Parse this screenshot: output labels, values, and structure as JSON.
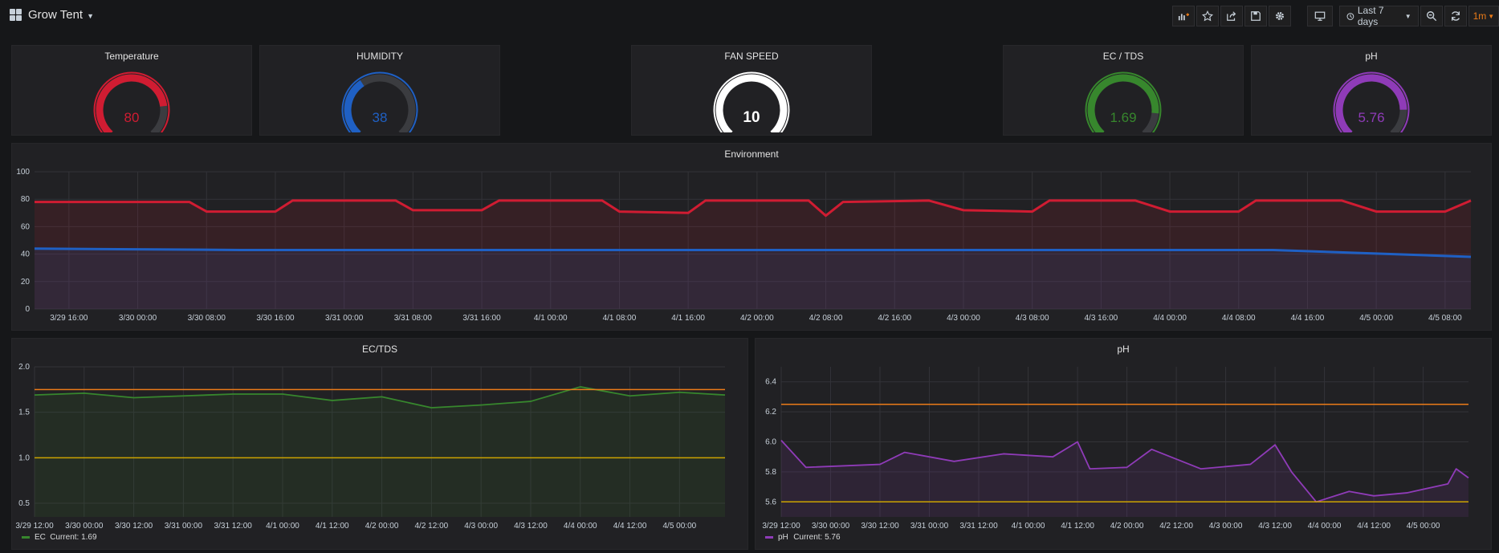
{
  "header": {
    "title": "Grow Tent",
    "time_range": "Last 7 days",
    "refresh_interval": "1m"
  },
  "gauges": [
    {
      "title": "Temperature",
      "value": 80,
      "display": "80",
      "min": 0,
      "max": 100,
      "color": "#d01c32"
    },
    {
      "title": "HUMIDITY",
      "value": 38,
      "display": "38",
      "min": 0,
      "max": 100,
      "color": "#1f60c4"
    },
    {
      "title": "FAN SPEED",
      "value": 10,
      "display": "10",
      "min": 0,
      "max": 10,
      "color": "#ffffff"
    },
    {
      "title": "EC / TDS",
      "value": 1.69,
      "display": "1.69",
      "min": 0,
      "max": 2,
      "color": "#37872d"
    },
    {
      "title": "pH",
      "value": 5.76,
      "display": "5.76",
      "min": 0,
      "max": 7,
      "color": "#8f3bb8"
    }
  ],
  "colors": {
    "temperature": "#d01c32",
    "humidity": "#1f60c4",
    "ec": "#37872d",
    "ph": "#8f3bb8",
    "threshold_upper": "#eb7b18",
    "threshold_lower": "#cca300"
  },
  "chart_data": [
    {
      "title": "Environment",
      "type": "line",
      "ylim": [
        0,
        100
      ],
      "yticks": [
        0,
        20,
        40,
        60,
        80,
        100
      ],
      "x_range": [
        "3/29 12:00",
        "4/5 11:00"
      ],
      "xtick_labels": [
        "3/29 16:00",
        "3/30 00:00",
        "3/30 08:00",
        "3/30 16:00",
        "3/31 00:00",
        "3/31 08:00",
        "3/31 16:00",
        "4/1 00:00",
        "4/1 08:00",
        "4/1 16:00",
        "4/2 00:00",
        "4/2 08:00",
        "4/2 16:00",
        "4/3 00:00",
        "4/3 08:00",
        "4/3 16:00",
        "4/4 00:00",
        "4/4 08:00",
        "4/4 16:00",
        "4/5 00:00",
        "4/5 08:00"
      ],
      "series": [
        {
          "points": [
            [
              "3/29 12:00",
              78
            ],
            [
              "3/30 06:00",
              78
            ],
            [
              "3/30 08:00",
              71
            ],
            [
              "3/30 16:00",
              71
            ],
            [
              "3/30 18:00",
              79
            ],
            [
              "3/31 06:00",
              79
            ],
            [
              "3/31 08:00",
              72
            ],
            [
              "3/31 16:00",
              72
            ],
            [
              "3/31 18:00",
              79
            ],
            [
              "4/1 06:00",
              79
            ],
            [
              "4/1 08:00",
              71
            ],
            [
              "4/1 16:00",
              70
            ],
            [
              "4/1 18:00",
              79
            ],
            [
              "4/2 06:00",
              79
            ],
            [
              "4/2 08:00",
              68
            ],
            [
              "4/2 10:00",
              78
            ],
            [
              "4/2 20:00",
              79
            ],
            [
              "4/3 00:00",
              72
            ],
            [
              "4/3 08:00",
              71
            ],
            [
              "4/3 10:00",
              79
            ],
            [
              "4/3 20:00",
              79
            ],
            [
              "4/4 00:00",
              71
            ],
            [
              "4/4 08:00",
              71
            ],
            [
              "4/4 10:00",
              79
            ],
            [
              "4/4 20:00",
              79
            ],
            [
              "4/5 00:00",
              71
            ],
            [
              "4/5 08:00",
              71
            ],
            [
              "4/5 11:00",
              79
            ]
          ]
        },
        {
          "points": [
            [
              "3/29 12:00",
              44
            ],
            [
              "3/30 12:00",
              43
            ],
            [
              "3/31 12:00",
              43
            ],
            [
              "4/1 12:00",
              43
            ],
            [
              "4/2 12:00",
              43
            ],
            [
              "4/3 12:00",
              43
            ],
            [
              "4/4 12:00",
              43
            ],
            [
              "4/5 11:00",
              38
            ]
          ]
        }
      ]
    },
    {
      "title": "EC/TDS",
      "type": "line",
      "ylim": [
        0.35,
        2.0
      ],
      "yticks": [
        0.5,
        1.0,
        1.5,
        2.0
      ],
      "thresholds": [
        1.75,
        1.0
      ],
      "x_range": [
        "3/29 12:00",
        "4/5 11:00"
      ],
      "xtick_labels": [
        "3/29 12:00",
        "3/30 00:00",
        "3/30 12:00",
        "3/31 00:00",
        "3/31 12:00",
        "4/1 00:00",
        "4/1 12:00",
        "4/2 00:00",
        "4/2 12:00",
        "4/3 00:00",
        "4/3 12:00",
        "4/4 00:00",
        "4/4 12:00",
        "4/5 00:00"
      ],
      "legend": "EC",
      "legend_current": "Current: 1.69",
      "series": [
        {
          "name": "EC",
          "points": [
            [
              "3/29 12:00",
              1.69
            ],
            [
              "3/30 00:00",
              1.71
            ],
            [
              "3/30 12:00",
              1.66
            ],
            [
              "3/31 00:00",
              1.68
            ],
            [
              "3/31 12:00",
              1.7
            ],
            [
              "4/1 00:00",
              1.7
            ],
            [
              "4/1 12:00",
              1.63
            ],
            [
              "4/2 00:00",
              1.67
            ],
            [
              "4/2 12:00",
              1.55
            ],
            [
              "4/3 00:00",
              1.58
            ],
            [
              "4/3 12:00",
              1.62
            ],
            [
              "4/4 00:00",
              1.78
            ],
            [
              "4/4 12:00",
              1.68
            ],
            [
              "4/5 00:00",
              1.72
            ],
            [
              "4/5 11:00",
              1.69
            ]
          ]
        }
      ]
    },
    {
      "title": "pH",
      "type": "line",
      "ylim": [
        5.5,
        6.5
      ],
      "yticks": [
        5.6,
        5.8,
        6.0,
        6.2,
        6.4
      ],
      "thresholds": [
        6.25,
        5.6
      ],
      "x_range": [
        "3/29 12:00",
        "4/5 11:00"
      ],
      "xtick_labels": [
        "3/29 12:00",
        "3/30 00:00",
        "3/30 12:00",
        "3/31 00:00",
        "3/31 12:00",
        "4/1 00:00",
        "4/1 12:00",
        "4/2 00:00",
        "4/2 12:00",
        "4/3 00:00",
        "4/3 12:00",
        "4/4 00:00",
        "4/4 12:00",
        "4/5 00:00"
      ],
      "legend": "pH",
      "legend_current": "Current: 5.76",
      "series": [
        {
          "name": "pH",
          "points": [
            [
              "3/29 12:00",
              6.01
            ],
            [
              "3/29 18:00",
              5.83
            ],
            [
              "3/30 12:00",
              5.85
            ],
            [
              "3/30 18:00",
              5.93
            ],
            [
              "3/31 06:00",
              5.87
            ],
            [
              "3/31 18:00",
              5.92
            ],
            [
              "4/1 06:00",
              5.9
            ],
            [
              "4/1 12:00",
              6.0
            ],
            [
              "4/1 15:00",
              5.82
            ],
            [
              "4/2 00:00",
              5.83
            ],
            [
              "4/2 06:00",
              5.95
            ],
            [
              "4/2 18:00",
              5.82
            ],
            [
              "4/3 06:00",
              5.85
            ],
            [
              "4/3 12:00",
              5.98
            ],
            [
              "4/3 16:00",
              5.8
            ],
            [
              "4/3 22:00",
              5.6
            ],
            [
              "4/4 06:00",
              5.67
            ],
            [
              "4/4 12:00",
              5.64
            ],
            [
              "4/4 20:00",
              5.66
            ],
            [
              "4/5 06:00",
              5.72
            ],
            [
              "4/5 08:00",
              5.82
            ],
            [
              "4/5 11:00",
              5.76
            ]
          ]
        }
      ]
    }
  ]
}
